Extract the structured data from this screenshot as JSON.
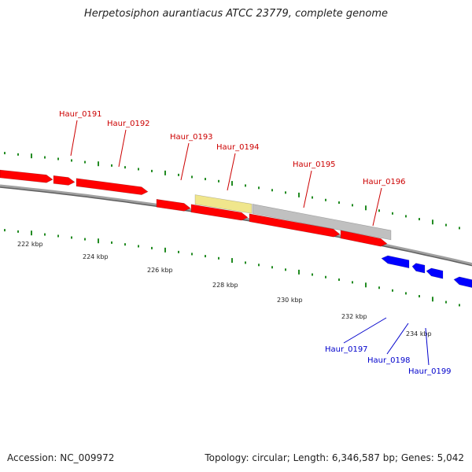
{
  "title": "Herpetosiphon aurantiacus ATCC 23779, complete genome",
  "footer": {
    "accession": "Accession: NC_009972",
    "stats": "Topology: circular; Length: 6,346,587 bp; Genes: 5,042"
  },
  "colors": {
    "forward_gene": "#ff0000",
    "reverse_gene": "#0000ff",
    "highlighted_gene": "#f0e68c",
    "pseudo_gene": "#c0c0c0",
    "backbone": "#808080",
    "tick": "#228b22",
    "label_forward": "#cc0000",
    "label_reverse": "#0000cc"
  },
  "ruler": {
    "labels": [
      "222 kbp",
      "224 kbp",
      "226 kbp",
      "228 kbp",
      "230 kbp",
      "232 kbp",
      "234 kbp"
    ]
  },
  "gene_labels": [
    {
      "text": "Haur_0191",
      "strand": "forward"
    },
    {
      "text": "Haur_0192",
      "strand": "forward"
    },
    {
      "text": "Haur_0193",
      "strand": "forward"
    },
    {
      "text": "Haur_0194",
      "strand": "forward"
    },
    {
      "text": "Haur_0195",
      "strand": "forward"
    },
    {
      "text": "Haur_0196",
      "strand": "forward"
    },
    {
      "text": "Haur_0197",
      "strand": "reverse"
    },
    {
      "text": "Haur_0198",
      "strand": "reverse"
    },
    {
      "text": "Haur_0199",
      "strand": "reverse"
    }
  ]
}
